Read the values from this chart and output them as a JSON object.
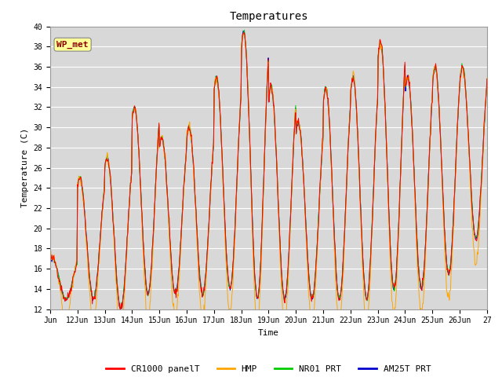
{
  "title": "Temperatures",
  "xlabel": "Time",
  "ylabel": "Temperature (C)",
  "ylim": [
    12,
    40
  ],
  "yticks": [
    12,
    14,
    16,
    18,
    20,
    22,
    24,
    26,
    28,
    30,
    32,
    34,
    36,
    38,
    40
  ],
  "bg_color": "#d8d8d8",
  "annotation_text": "WP_met",
  "annotation_color": "#8b0000",
  "annotation_bg": "#ffff99",
  "line_colors": {
    "CR1000 panelT": "#ff0000",
    "HMP": "#ffa500",
    "NR01 PRT": "#00cc00",
    "AM25T PRT": "#0000cc"
  },
  "x_tick_labels": [
    "Jun",
    "12Jun",
    "13Jun",
    "14Jun",
    "15Jun",
    "16Jun",
    "17Jun",
    "18Jun",
    "19Jun",
    "20Jun",
    "21Jun",
    "22Jun",
    "23Jun",
    "24Jun",
    "25Jun",
    "26Jun",
    "27"
  ],
  "n_days": 16,
  "pts_per_day": 48,
  "daily_maxes": [
    17,
    25,
    27,
    32,
    29,
    30,
    35,
    39.5,
    34,
    30.5,
    34,
    35,
    38.5,
    35,
    36,
    36
  ],
  "daily_mins": [
    13,
    13,
    12,
    13.5,
    13.5,
    13.5,
    14,
    13,
    13,
    13,
    13,
    13,
    14,
    14,
    15.5,
    19
  ],
  "title_fontsize": 10,
  "tick_fontsize": 7,
  "label_fontsize": 8,
  "legend_fontsize": 8
}
